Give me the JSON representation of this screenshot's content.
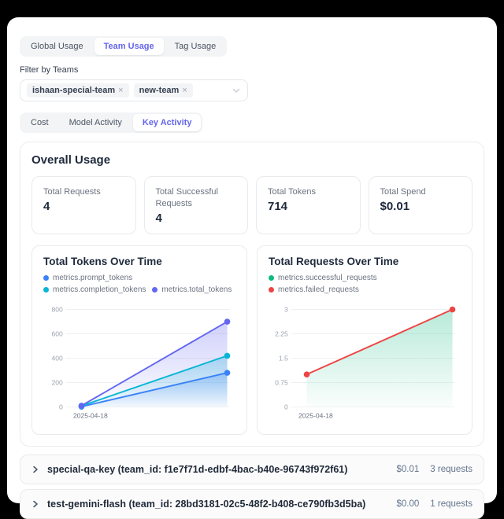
{
  "theme": {
    "accent": "#6466e9",
    "page_bg": "#000000",
    "card_bg": "#ffffff"
  },
  "top_tabs": [
    {
      "label": "Global Usage",
      "active": false
    },
    {
      "label": "Team Usage",
      "active": true
    },
    {
      "label": "Tag Usage",
      "active": false
    }
  ],
  "filter": {
    "label": "Filter by Teams",
    "chips": [
      {
        "label": "ishaan-special-team",
        "remove": "×"
      },
      {
        "label": "new-team",
        "remove": "×"
      }
    ]
  },
  "sub_tabs": [
    {
      "label": "Cost",
      "active": false
    },
    {
      "label": "Model Activity",
      "active": false
    },
    {
      "label": "Key Activity",
      "active": true
    }
  ],
  "overall": {
    "title": "Overall Usage",
    "stats": [
      {
        "label": "Total Requests",
        "value": "4"
      },
      {
        "label": "Total Successful Requests",
        "value": "4"
      },
      {
        "label": "Total Tokens",
        "value": "714"
      },
      {
        "label": "Total Spend",
        "value": "$0.01"
      }
    ]
  },
  "chart_data": [
    {
      "type": "area",
      "title": "Total Tokens Over Time",
      "x": [
        "2025-04-18",
        ""
      ],
      "x_tick_labels": [
        "2025-04-18"
      ],
      "series": [
        {
          "name": "metrics.prompt_tokens",
          "color": "#3b82f6",
          "values": [
            2,
            280
          ],
          "area": true
        },
        {
          "name": "metrics.completion_tokens",
          "color": "#06b6d4",
          "values": [
            8,
            420
          ],
          "area": true
        },
        {
          "name": "metrics.total_tokens",
          "color": "#6366f1",
          "values": [
            10,
            700
          ],
          "area": true
        }
      ],
      "ylim": [
        0,
        800
      ],
      "yticks": [
        0,
        200,
        400,
        600,
        800
      ],
      "grid": true,
      "legend_position": "top"
    },
    {
      "type": "area",
      "title": "Total Requests Over Time",
      "x": [
        "2025-04-18",
        ""
      ],
      "x_tick_labels": [
        "2025-04-18"
      ],
      "series": [
        {
          "name": "metrics.successful_requests",
          "color": "#10b981",
          "values": [
            1,
            3
          ],
          "area": true,
          "line": false
        },
        {
          "name": "metrics.failed_requests",
          "color": "#ef4444",
          "values": [
            1,
            3
          ],
          "area": false,
          "line": true
        }
      ],
      "ylim": [
        0,
        3
      ],
      "yticks": [
        0,
        0.75,
        1.5,
        2.25,
        3
      ],
      "grid": true,
      "legend_position": "top"
    }
  ],
  "keys": [
    {
      "name": "special-qa-key (team_id: f1e7f71d-edbf-4bac-b40e-96743f972f61)",
      "spend": "$0.01",
      "requests": "3 requests"
    },
    {
      "name": "test-gemini-flash (team_id: 28bd3181-02c5-48f2-b408-ce790fb3d5ba)",
      "spend": "$0.00",
      "requests": "1 requests"
    }
  ]
}
